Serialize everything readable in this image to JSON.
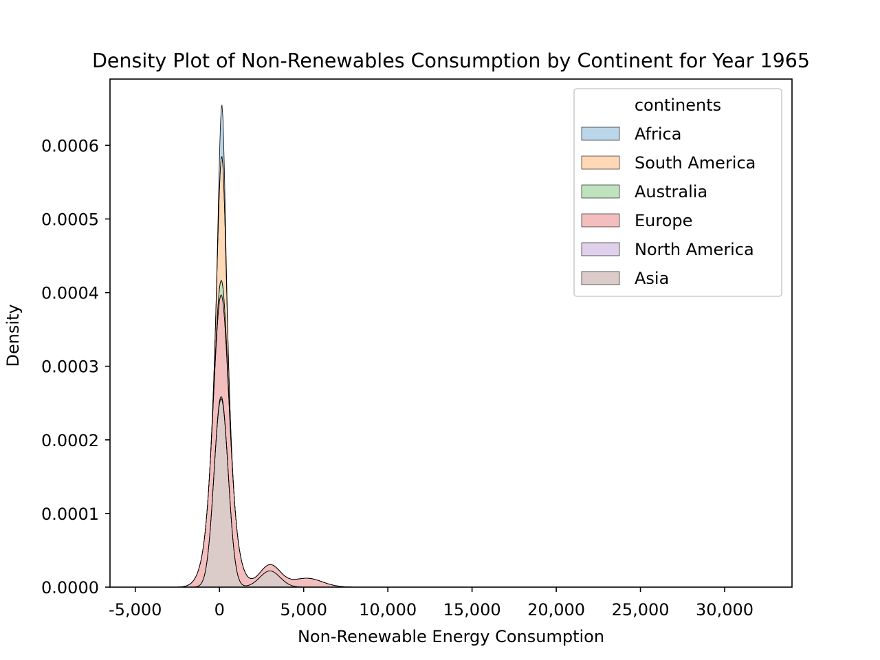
{
  "chart_data": {
    "type": "area",
    "stacked": true,
    "title": "Density Plot of Non-Renewables Consumption by Continent for Year 1965",
    "xlabel": "Non-Renewable Energy Consumption",
    "ylabel": "Density",
    "xlim": [
      -6500,
      34000
    ],
    "ylim": [
      0,
      0.00069
    ],
    "x_ticks": [
      -5000,
      0,
      5000,
      10000,
      15000,
      20000,
      25000,
      30000
    ],
    "x_tick_labels": [
      "-5,000",
      "0",
      "5,000",
      "10,000",
      "15,000",
      "20,000",
      "25,000",
      "30,000"
    ],
    "y_ticks": [
      0,
      0.0001,
      0.0002,
      0.0003,
      0.0004,
      0.0005,
      0.0006
    ],
    "y_tick_labels": [
      "0.0000",
      "0.0001",
      "0.0002",
      "0.0003",
      "0.0004",
      "0.0005",
      "0.0006"
    ],
    "legend": {
      "title": "continents",
      "position": "top-right",
      "entries": [
        "Africa",
        "South America",
        "Australia",
        "Europe",
        "North America",
        "Asia"
      ]
    },
    "series": [
      {
        "name": "Asia",
        "color": "#8c564b",
        "components": [
          {
            "mu": 100,
            "sigma": 420,
            "amp": 0.000256
          },
          {
            "mu": 3000,
            "sigma": 600,
            "amp": 2.2e-05
          }
        ]
      },
      {
        "name": "North America",
        "color": "#9467bd",
        "components": [
          {
            "mu": 100,
            "sigma": 450,
            "amp": 3e-06
          }
        ]
      },
      {
        "name": "Europe",
        "color": "#d62728",
        "components": [
          {
            "mu": 100,
            "sigma": 700,
            "amp": 0.000138
          },
          {
            "mu": 3000,
            "sigma": 700,
            "amp": 8e-06
          },
          {
            "mu": 5200,
            "sigma": 900,
            "amp": 1.2e-05
          }
        ]
      },
      {
        "name": "Australia",
        "color": "#2ca02c",
        "components": [
          {
            "mu": 150,
            "sigma": 280,
            "amp": 2e-05
          }
        ]
      },
      {
        "name": "South America",
        "color": "#ff7f0e",
        "components": [
          {
            "mu": 150,
            "sigma": 220,
            "amp": 0.00017
          }
        ]
      },
      {
        "name": "Africa",
        "color": "#1f77b4",
        "components": [
          {
            "mu": 150,
            "sigma": 150,
            "amp": 7e-05
          }
        ]
      }
    ]
  }
}
